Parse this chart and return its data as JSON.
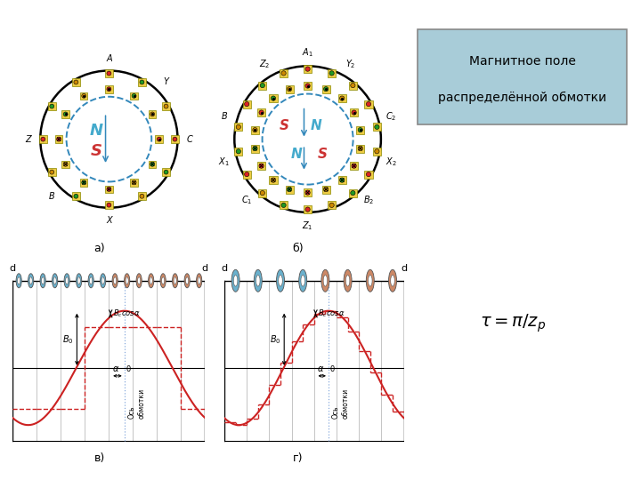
{
  "bg_color": "#ffffff",
  "label_a": "а)",
  "label_b": "б)",
  "label_v": "в)",
  "label_g": "г)",
  "tau_formula": "$\\tau = \\pi / z_p$",
  "title_text1": "Магнитное поле",
  "title_text2": "распределённой обмотки",
  "title_facecolor": "#a8ccd8",
  "title_edgecolor": "#888888",
  "wave_blue": "#6ab0cc",
  "wave_orange": "#cc8866",
  "wave_red": "#cc2222",
  "grid_color": "#cccccc",
  "dashed_blue": "#88aadd"
}
